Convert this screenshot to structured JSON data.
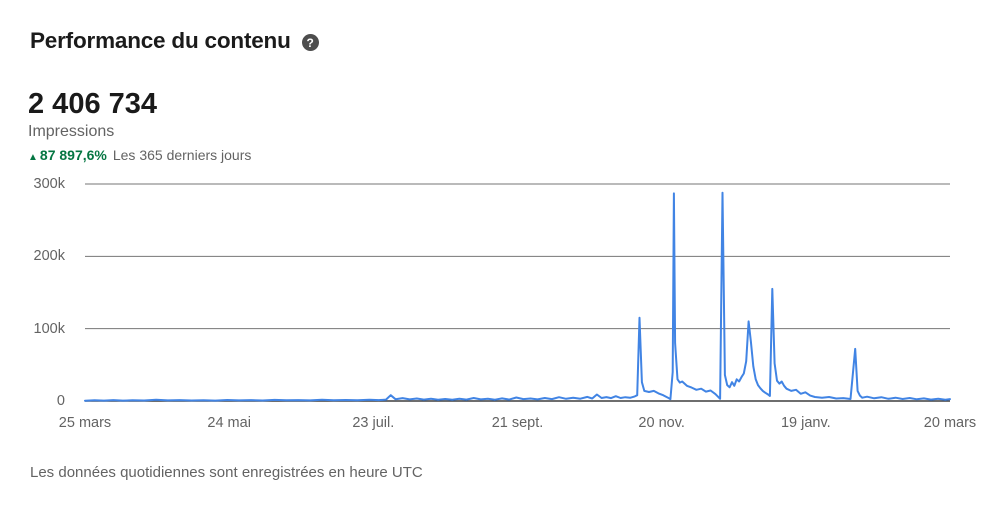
{
  "header": {
    "title": "Performance du contenu",
    "help_glyph": "?"
  },
  "stats": {
    "value": "2 406 734",
    "metric": "Impressions",
    "trend_arrow": "▲",
    "trend_percent": "87 897,6%",
    "trend_period": "Les 365 derniers jours"
  },
  "footer": {
    "note": "Les données quotidiennes sont enregistrées en heure UTC"
  },
  "colors": {
    "line": "#4184E4",
    "grid": "#767676",
    "axis": "#3F3F3F",
    "positive_green": "#057642",
    "text_muted": "#636363",
    "text_dark": "#1A1A1A"
  },
  "chart_data": {
    "type": "line",
    "grid": "horizontal",
    "legend": "none",
    "x_unit": "days since 25 mars",
    "x_range_days": 365,
    "x_tick_positions_days": [
      0,
      60.83,
      121.67,
      182.5,
      243.33,
      304.17,
      365
    ],
    "x_tick_labels": [
      "25 mars",
      "24 mai",
      "23 juil.",
      "21 sept.",
      "20 nov.",
      "19 janv.",
      "20 mars"
    ],
    "y_ticks": [
      0,
      100000,
      200000,
      300000
    ],
    "y_tick_labels": [
      "0",
      "100k",
      "200k",
      "300k"
    ],
    "ylim": [
      0,
      300000
    ],
    "series": [
      {
        "name": "Impressions",
        "points": [
          [
            0,
            400
          ],
          [
            4,
            900
          ],
          [
            8,
            500
          ],
          [
            12,
            1200
          ],
          [
            16,
            600
          ],
          [
            20,
            1000
          ],
          [
            25,
            700
          ],
          [
            30,
            1600
          ],
          [
            35,
            800
          ],
          [
            40,
            1300
          ],
          [
            45,
            700
          ],
          [
            50,
            1100
          ],
          [
            55,
            600
          ],
          [
            60,
            1400
          ],
          [
            65,
            800
          ],
          [
            70,
            1200
          ],
          [
            75,
            700
          ],
          [
            80,
            1500
          ],
          [
            85,
            900
          ],
          [
            90,
            1300
          ],
          [
            95,
            800
          ],
          [
            100,
            1600
          ],
          [
            105,
            900
          ],
          [
            110,
            1400
          ],
          [
            115,
            1000
          ],
          [
            120,
            1800
          ],
          [
            124,
            1200
          ],
          [
            127,
            2000
          ],
          [
            129,
            8000
          ],
          [
            131,
            2500
          ],
          [
            134,
            4000
          ],
          [
            137,
            2200
          ],
          [
            140,
            3500
          ],
          [
            143,
            2000
          ],
          [
            146,
            3000
          ],
          [
            149,
            1800
          ],
          [
            152,
            2800
          ],
          [
            155,
            1600
          ],
          [
            158,
            3200
          ],
          [
            161,
            2000
          ],
          [
            164,
            4200
          ],
          [
            167,
            2200
          ],
          [
            170,
            3000
          ],
          [
            173,
            1800
          ],
          [
            176,
            3600
          ],
          [
            179,
            2000
          ],
          [
            182,
            4800
          ],
          [
            185,
            2600
          ],
          [
            188,
            3400
          ],
          [
            191,
            2200
          ],
          [
            194,
            4200
          ],
          [
            197,
            2600
          ],
          [
            200,
            5200
          ],
          [
            203,
            3000
          ],
          [
            206,
            4400
          ],
          [
            209,
            3200
          ],
          [
            212,
            5600
          ],
          [
            214,
            3400
          ],
          [
            216,
            9000
          ],
          [
            218,
            4200
          ],
          [
            220,
            5400
          ],
          [
            222,
            4000
          ],
          [
            224,
            6600
          ],
          [
            226,
            4200
          ],
          [
            228,
            5200
          ],
          [
            230,
            4400
          ],
          [
            232,
            6400
          ],
          [
            233,
            8000
          ],
          [
            234,
            115000
          ],
          [
            235,
            26000
          ],
          [
            236,
            14000
          ],
          [
            238,
            12500
          ],
          [
            240,
            14000
          ],
          [
            242,
            10500
          ],
          [
            244,
            8000
          ],
          [
            246,
            4500
          ],
          [
            247,
            2500
          ],
          [
            248,
            40000
          ],
          [
            248.5,
            287000
          ],
          [
            249,
            80000
          ],
          [
            250,
            30000
          ],
          [
            251,
            25500
          ],
          [
            252,
            27000
          ],
          [
            254,
            21000
          ],
          [
            256,
            18500
          ],
          [
            258,
            15500
          ],
          [
            260,
            17000
          ],
          [
            262,
            13000
          ],
          [
            264,
            14500
          ],
          [
            266,
            9500
          ],
          [
            268,
            3000
          ],
          [
            269,
            288000
          ],
          [
            270,
            36000
          ],
          [
            271,
            22000
          ],
          [
            272,
            19000
          ],
          [
            273,
            26000
          ],
          [
            274,
            21000
          ],
          [
            275,
            30000
          ],
          [
            276,
            27000
          ],
          [
            277,
            33000
          ],
          [
            278,
            38000
          ],
          [
            279,
            55000
          ],
          [
            280,
            110000
          ],
          [
            281,
            82000
          ],
          [
            282,
            48000
          ],
          [
            283,
            30000
          ],
          [
            284,
            22000
          ],
          [
            285,
            17500
          ],
          [
            286,
            14000
          ],
          [
            287,
            11500
          ],
          [
            288,
            9500
          ],
          [
            289,
            7000
          ],
          [
            290,
            155000
          ],
          [
            291,
            52000
          ],
          [
            292,
            28000
          ],
          [
            293,
            24000
          ],
          [
            294,
            27000
          ],
          [
            295,
            21000
          ],
          [
            296,
            17000
          ],
          [
            298,
            14000
          ],
          [
            300,
            15500
          ],
          [
            302,
            10000
          ],
          [
            304,
            12000
          ],
          [
            306,
            7500
          ],
          [
            308,
            5500
          ],
          [
            311,
            4500
          ],
          [
            314,
            5500
          ],
          [
            317,
            3500
          ],
          [
            320,
            4000
          ],
          [
            323,
            2800
          ],
          [
            325,
            72000
          ],
          [
            326,
            14000
          ],
          [
            327,
            7500
          ],
          [
            328,
            4500
          ],
          [
            330,
            6000
          ],
          [
            333,
            3800
          ],
          [
            336,
            5200
          ],
          [
            339,
            3000
          ],
          [
            342,
            4600
          ],
          [
            345,
            2800
          ],
          [
            348,
            4200
          ],
          [
            351,
            2400
          ],
          [
            354,
            3600
          ],
          [
            357,
            2000
          ],
          [
            360,
            3200
          ],
          [
            363,
            1800
          ],
          [
            365,
            2600
          ]
        ]
      }
    ]
  }
}
